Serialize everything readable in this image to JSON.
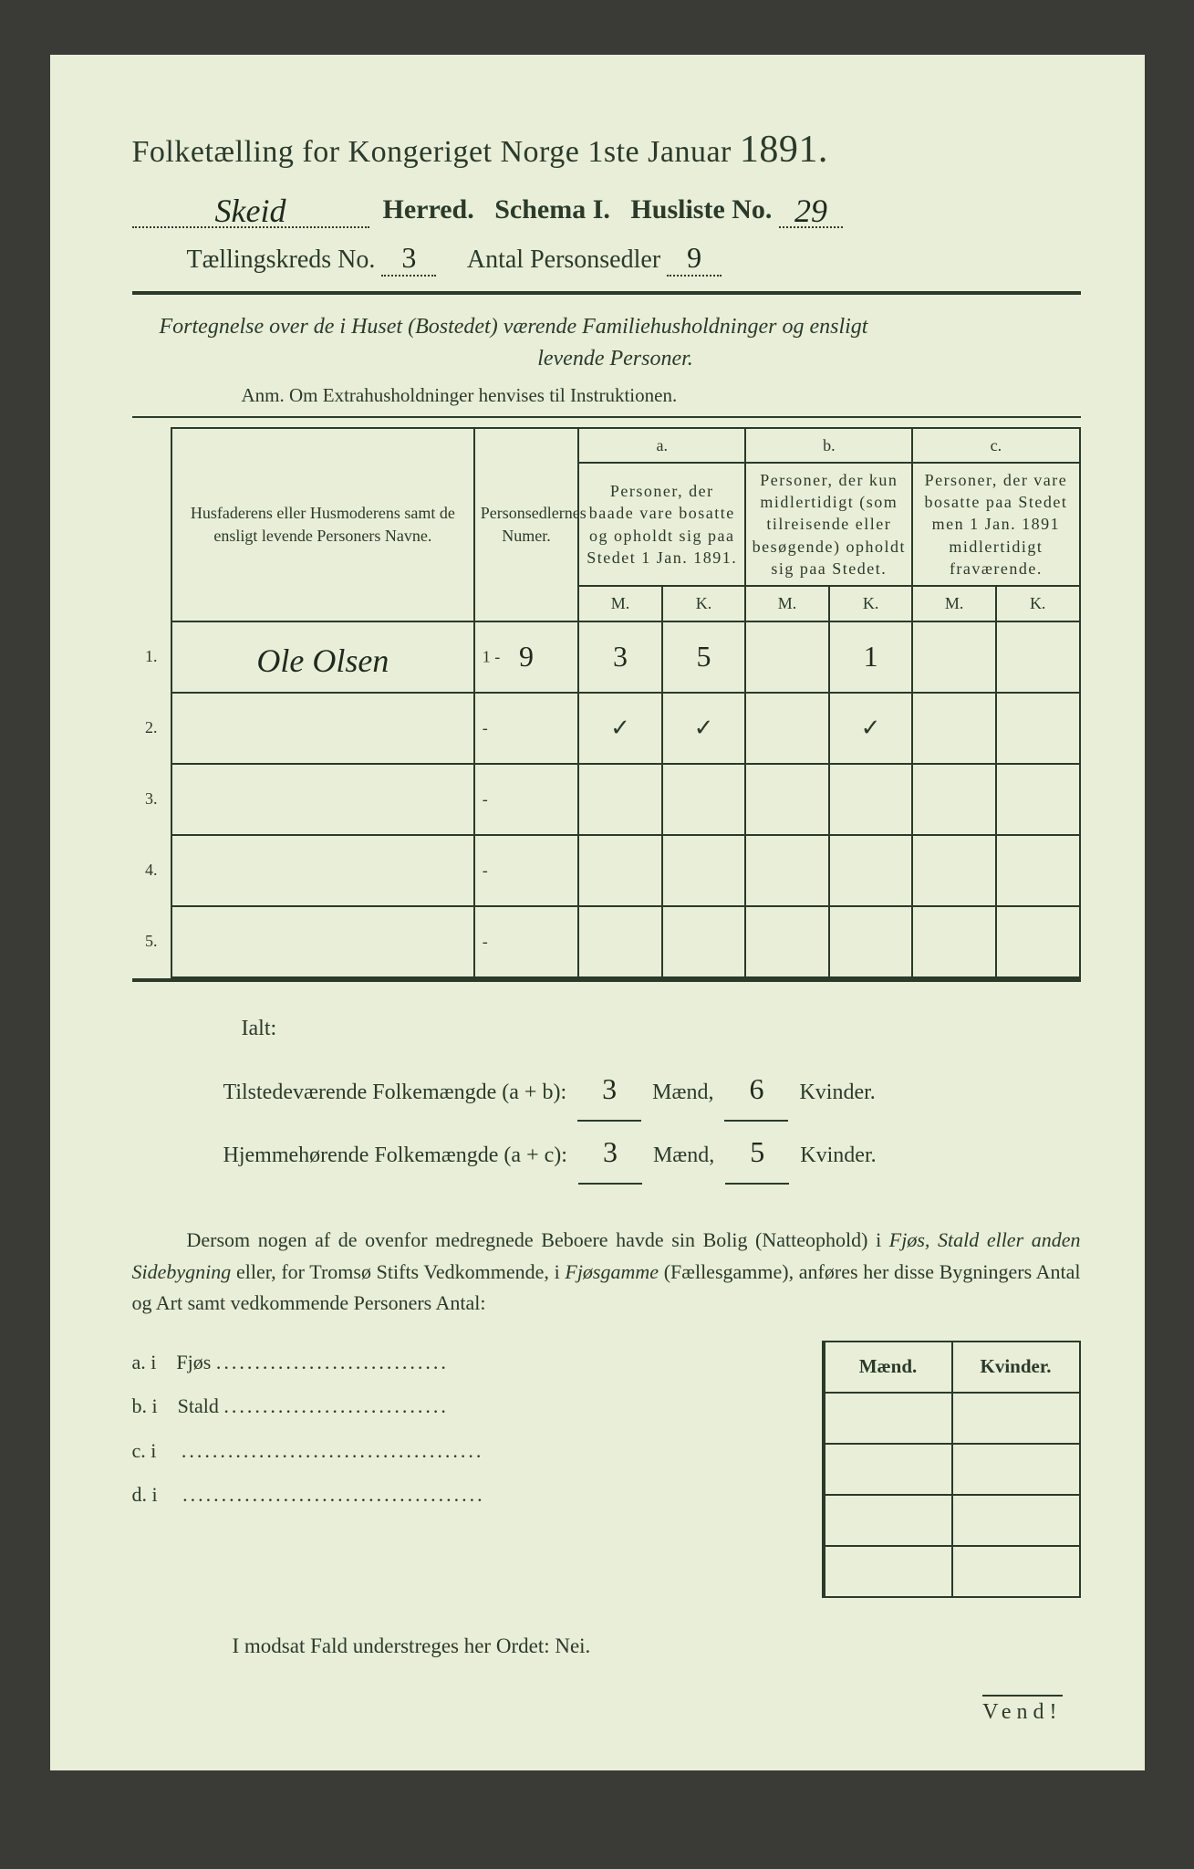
{
  "colors": {
    "paper_bg": "#e9eed8",
    "ink": "#2b3a2a",
    "frame_bg": "#3a3a36",
    "handwriting": "#1f2a1e"
  },
  "header": {
    "title_main": "Folketælling for Kongeriget Norge 1ste Januar",
    "title_year": "1891.",
    "herred_value": "Skeid",
    "herred_label": "Herred.",
    "schema_label": "Schema I.",
    "husliste_label": "Husliste No.",
    "husliste_value": "29",
    "kreds_label": "Tællingskreds No.",
    "kreds_value": "3",
    "personsedler_label": "Antal Personsedler",
    "personsedler_value": "9"
  },
  "subtitle": {
    "line1": "Fortegnelse over de i Huset (Bostedet) værende Familiehusholdninger og ensligt",
    "line2": "levende Personer.",
    "anm": "Anm.  Om Extrahusholdninger henvises til Instruktionen."
  },
  "table": {
    "col_names": "Husfaderens eller Husmoderens samt de ensligt levende Personers Navne.",
    "col_num": "Personsedlernes Numer.",
    "col_a_head": "a.",
    "col_a_text": "Personer, der baade vare bosatte og opholdt sig paa Stedet 1 Jan. 1891.",
    "col_b_head": "b.",
    "col_b_text": "Personer, der kun midlertidigt (som tilreisende eller besøgende) opholdt sig paa Stedet.",
    "col_c_head": "c.",
    "col_c_text": "Personer, der vare bosatte paa Stedet men 1 Jan. 1891 midlertidigt fraværende.",
    "m": "M.",
    "k": "K.",
    "rows": [
      {
        "n": "1.",
        "name": "Ole Olsen",
        "numpre": "1 -",
        "num": "9",
        "aM": "3",
        "aK": "5",
        "bM": "",
        "bK": "1",
        "cM": "",
        "cK": ""
      },
      {
        "n": "2.",
        "name": "",
        "numpre": "-",
        "num": "",
        "aM": "✓",
        "aK": "✓",
        "bM": "",
        "bK": "✓",
        "cM": "",
        "cK": ""
      },
      {
        "n": "3.",
        "name": "",
        "numpre": "-",
        "num": "",
        "aM": "",
        "aK": "",
        "bM": "",
        "bK": "",
        "cM": "",
        "cK": ""
      },
      {
        "n": "4.",
        "name": "",
        "numpre": "-",
        "num": "",
        "aM": "",
        "aK": "",
        "bM": "",
        "bK": "",
        "cM": "",
        "cK": ""
      },
      {
        "n": "5.",
        "name": "",
        "numpre": "-",
        "num": "",
        "aM": "",
        "aK": "",
        "bM": "",
        "bK": "",
        "cM": "",
        "cK": ""
      }
    ]
  },
  "totals": {
    "ialt": "Ialt:",
    "line1_label": "Tilstedeværende Folkemængde (a + b):",
    "line1_m": "3",
    "line1_m_unit": "Mænd,",
    "line1_k": "6",
    "line1_k_unit": "Kvinder.",
    "line2_label": "Hjemmehørende Folkemængde (a + c):",
    "line2_m": "3",
    "line2_m_unit": "Mænd,",
    "line2_k": "5",
    "line2_k_unit": "Kvinder."
  },
  "paragraph": {
    "text1": "Dersom nogen af de ovenfor medregnede Beboere havde sin Bolig (Natteophold) i ",
    "text2_italic": "Fjøs, Stald eller anden Sidebygning",
    "text3": " eller, for Tromsø Stifts Vedkommende, i ",
    "text4_italic": "Fjøsgamme",
    "text5": " (Fællesgamme), anføres her disse Bygningers Antal og Art samt vedkommende Personers Antal:"
  },
  "side": {
    "items": [
      {
        "key": "a.  i",
        "label": "Fjøs",
        "dots": ".............................."
      },
      {
        "key": "b.  i",
        "label": "Stald",
        "dots": "............................."
      },
      {
        "key": "c.  i",
        "label": "",
        "dots": "......................................."
      },
      {
        "key": "d.  i",
        "label": "",
        "dots": "......................................."
      }
    ],
    "col_m": "Mænd.",
    "col_k": "Kvinder."
  },
  "nei": "I modsat Fald understreges her Ordet: Nei.",
  "vend": "Vend!"
}
